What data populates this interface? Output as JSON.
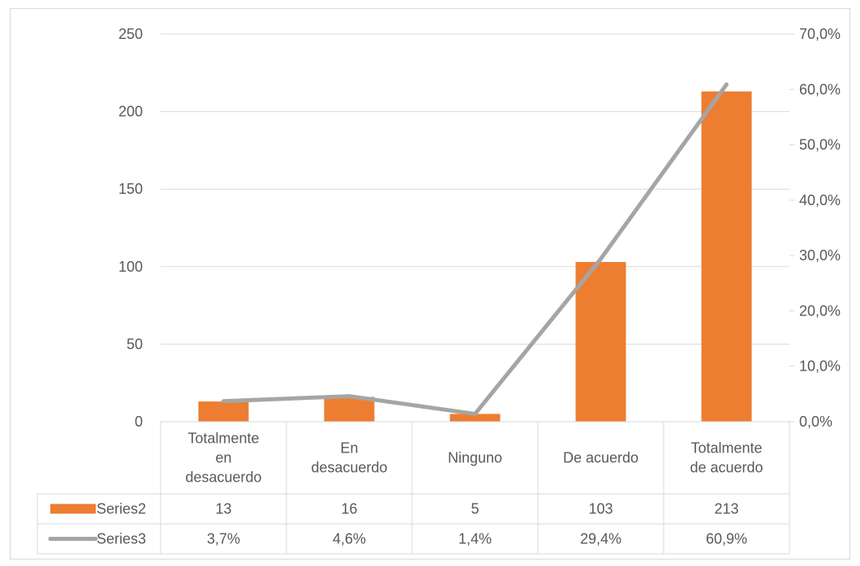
{
  "chart_data": {
    "type": "bar",
    "categories": [
      [
        "Totalmente",
        "en",
        "desacuerdo"
      ],
      [
        "En",
        "desacuerdo"
      ],
      [
        "Ninguno"
      ],
      [
        "De acuerdo"
      ],
      [
        "Totalmente",
        "de acuerdo"
      ]
    ],
    "series": [
      {
        "name": "Series2",
        "type": "bar",
        "axis": "left",
        "values": [
          13,
          16,
          5,
          103,
          213
        ],
        "display": [
          "13",
          "16",
          "5",
          "103",
          "213"
        ],
        "color": "#ED7D31"
      },
      {
        "name": "Series3",
        "type": "line",
        "axis": "right",
        "values": [
          3.7,
          4.6,
          1.4,
          29.4,
          60.9
        ],
        "display": [
          "3,7%",
          "4,6%",
          "1,4%",
          "29,4%",
          "60,9%"
        ],
        "color": "#A5A5A5"
      }
    ],
    "y_left": {
      "min": 0,
      "max": 250,
      "ticks": [
        0,
        50,
        100,
        150,
        200,
        250
      ],
      "tick_labels": [
        "0",
        "50",
        "100",
        "150",
        "200",
        "250"
      ]
    },
    "y_right": {
      "min": 0,
      "max": 70,
      "ticks": [
        0,
        10,
        20,
        30,
        40,
        50,
        60,
        70
      ],
      "tick_labels": [
        "0,0%",
        "10,0%",
        "20,0%",
        "30,0%",
        "40,0%",
        "50,0%",
        "60,0%",
        "70,0%"
      ]
    },
    "grid": true,
    "data_table": true,
    "title": "",
    "xlabel": "",
    "ylabel": ""
  }
}
